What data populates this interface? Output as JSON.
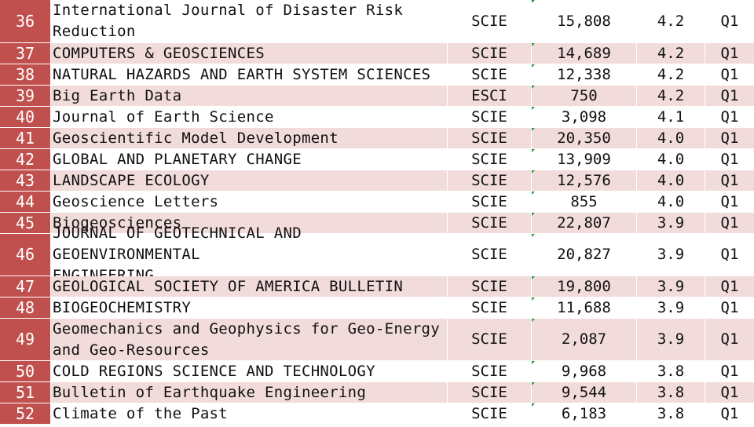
{
  "colors": {
    "index_bg": "#c0504d",
    "row_pink": "#f2dcdb",
    "row_white": "#ffffff",
    "tick_green": "#1f9a3c"
  },
  "rows": [
    {
      "idx": "36",
      "name": "International Journal of Disaster Risk\nReduction",
      "type": "SCIE",
      "cites": "15,808",
      "if": "4.2",
      "q": "Q1"
    },
    {
      "idx": "37",
      "name": "COMPUTERS & GEOSCIENCES",
      "type": "SCIE",
      "cites": "14,689",
      "if": "4.2",
      "q": "Q1"
    },
    {
      "idx": "38",
      "name": "NATURAL HAZARDS AND EARTH SYSTEM SCIENCES",
      "type": "SCIE",
      "cites": "12,338",
      "if": "4.2",
      "q": "Q1"
    },
    {
      "idx": "39",
      "name": "Big Earth Data",
      "type": "ESCI",
      "cites": "750",
      "if": "4.2",
      "q": "Q1"
    },
    {
      "idx": "40",
      "name": "Journal of Earth Science",
      "type": "SCIE",
      "cites": "3,098",
      "if": "4.1",
      "q": "Q1"
    },
    {
      "idx": "41",
      "name": "Geoscientific Model Development",
      "type": "SCIE",
      "cites": "20,350",
      "if": "4.0",
      "q": "Q1"
    },
    {
      "idx": "42",
      "name": "GLOBAL AND PLANETARY CHANGE",
      "type": "SCIE",
      "cites": "13,909",
      "if": "4.0",
      "q": "Q1"
    },
    {
      "idx": "43",
      "name": "LANDSCAPE ECOLOGY",
      "type": "SCIE",
      "cites": "12,576",
      "if": "4.0",
      "q": "Q1"
    },
    {
      "idx": "44",
      "name": "Geoscience Letters",
      "type": "SCIE",
      "cites": "855",
      "if": "4.0",
      "q": "Q1"
    },
    {
      "idx": "45",
      "name": "Biogeosciences",
      "type": "SCIE",
      "cites": "22,807",
      "if": "3.9",
      "q": "Q1"
    },
    {
      "idx": "46",
      "name": "JOURNAL OF GEOTECHNICAL AND GEOENVIRONMENTAL\nENGINEERING",
      "type": "SCIE",
      "cites": "20,827",
      "if": "3.9",
      "q": "Q1"
    },
    {
      "idx": "47",
      "name": "GEOLOGICAL SOCIETY OF AMERICA BULLETIN",
      "type": "SCIE",
      "cites": "19,800",
      "if": "3.9",
      "q": "Q1"
    },
    {
      "idx": "48",
      "name": "BIOGEOCHEMISTRY",
      "type": "SCIE",
      "cites": "11,688",
      "if": "3.9",
      "q": "Q1"
    },
    {
      "idx": "49",
      "name": "Geomechanics and Geophysics for Geo-Energy\nand Geo-Resources",
      "type": "SCIE",
      "cites": "2,087",
      "if": "3.9",
      "q": "Q1"
    },
    {
      "idx": "50",
      "name": "COLD REGIONS SCIENCE AND TECHNOLOGY",
      "type": "SCIE",
      "cites": "9,968",
      "if": "3.8",
      "q": "Q1"
    },
    {
      "idx": "51",
      "name": "Bulletin of Earthquake Engineering",
      "type": "SCIE",
      "cites": "9,544",
      "if": "3.8",
      "q": "Q1"
    },
    {
      "idx": "52",
      "name": "Climate of the Past",
      "type": "SCIE",
      "cites": "6,183",
      "if": "3.8",
      "q": "Q1"
    }
  ]
}
